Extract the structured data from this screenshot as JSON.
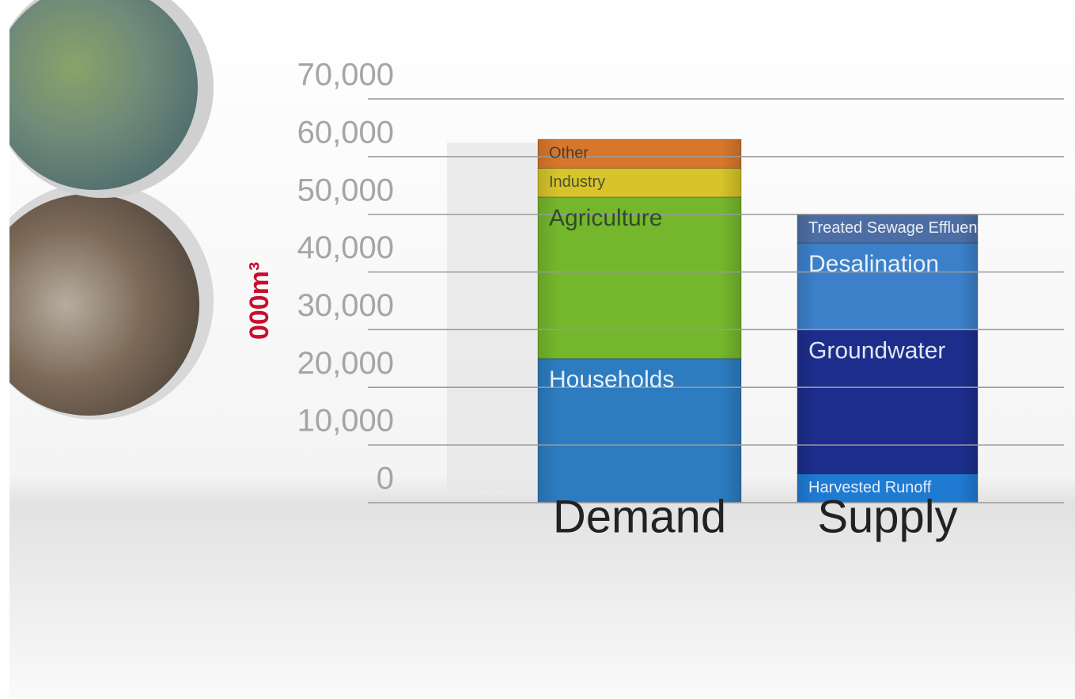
{
  "chart_data": {
    "type": "stacked_bar",
    "y_axis_title": "000m³",
    "categories": [
      "Demand",
      "Supply"
    ],
    "series": [
      {
        "name": "Households",
        "color": "#2d7cc0",
        "values": [
          25000,
          null
        ]
      },
      {
        "name": "Agriculture",
        "color": "#74b72c",
        "values": [
          28000,
          null
        ]
      },
      {
        "name": "Industry",
        "color": "#d6c42a",
        "values": [
          5000,
          null
        ]
      },
      {
        "name": "Other",
        "color": "#d8772b",
        "values": [
          5000,
          null
        ]
      },
      {
        "name": "Harvested Runoff",
        "color": "#1f7ad2",
        "values": [
          null,
          5000
        ]
      },
      {
        "name": "Groundwater",
        "color": "#1d2d8c",
        "values": [
          null,
          25000
        ]
      },
      {
        "name": "Desalination",
        "color": "#3b80c9",
        "values": [
          null,
          15000
        ]
      },
      {
        "name": "Treated Sewage Effluent",
        "color": "#4d6ea4",
        "values": [
          null,
          5000
        ]
      }
    ],
    "ylim": [
      0,
      70000
    ],
    "yticks": [
      0,
      {
        "value": 10000,
        "label": "10,000"
      },
      {
        "value": 20000,
        "label": "20,000"
      },
      {
        "value": 30000,
        "label": "30,000"
      },
      {
        "value": 40000,
        "label": "40,000"
      },
      {
        "value": 50000,
        "label": "50,000"
      },
      {
        "value": 60000,
        "label": "60,000"
      },
      {
        "value": 70000,
        "label": "70,000"
      }
    ],
    "grid": true
  }
}
